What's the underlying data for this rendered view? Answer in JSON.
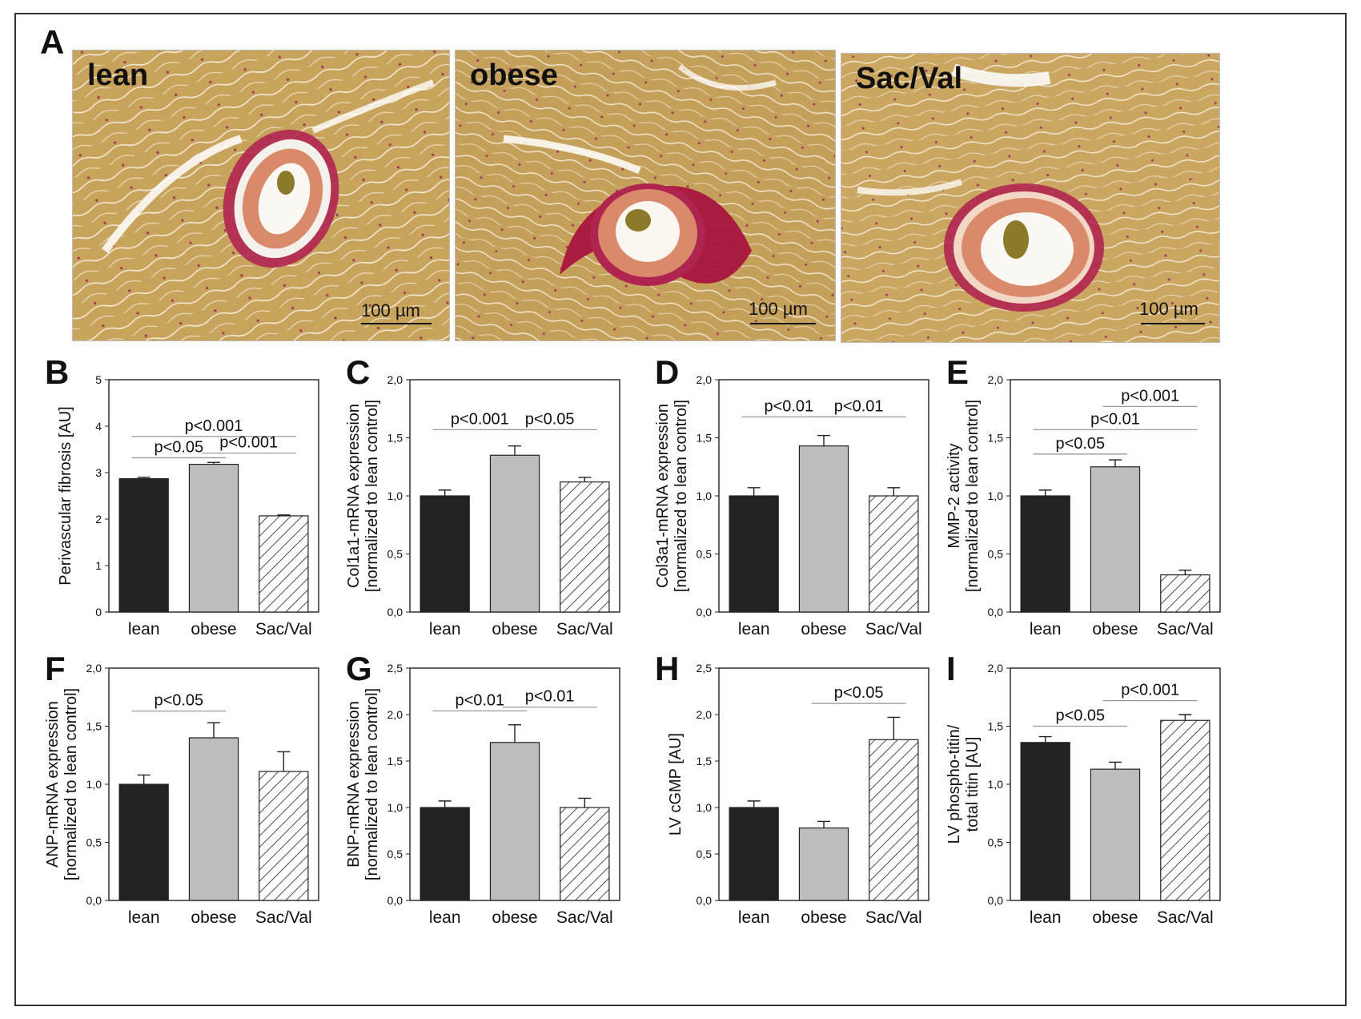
{
  "panel_A": {
    "letter": "A",
    "images": [
      {
        "label": "lean",
        "scale": "100 µm"
      },
      {
        "label": "obese",
        "scale": "100 µm"
      },
      {
        "label": "Sac/Val",
        "scale": "100 µm"
      }
    ]
  },
  "colors": {
    "lean_bar": "#222222",
    "obese_bar": "#bdbdbd",
    "sacval_bar": "hatched",
    "tissue": "#c9a45a",
    "collagen": "#b0204a"
  },
  "chart_data": [
    {
      "panel": "B",
      "type": "bar",
      "ylabel_lines": [
        "Perivascular fibrosis [AU]"
      ],
      "categories": [
        "lean",
        "obese",
        "Sac/Val"
      ],
      "values": [
        2.87,
        3.18,
        2.07
      ],
      "errors": [
        0.03,
        0.04,
        0.02
      ],
      "ylim": [
        0,
        5
      ],
      "yticks": [
        "0",
        "1",
        "2",
        "3",
        "4",
        "5"
      ],
      "yticks_values": [
        0,
        1,
        2,
        3,
        4,
        5
      ],
      "significance": [
        {
          "from": 0,
          "to": 2,
          "y": 3.78,
          "label": "p<0.001"
        },
        {
          "from": 0,
          "to": 1,
          "y": 3.32,
          "label": "p<0.05"
        },
        {
          "from": 1,
          "to": 2,
          "y": 3.42,
          "label": "p<0.001"
        }
      ]
    },
    {
      "panel": "C",
      "type": "bar",
      "ylabel_lines": [
        "Col1a1-mRNA expression",
        "[normalized to lean control]"
      ],
      "categories": [
        "lean",
        "obese",
        "Sac/Val"
      ],
      "values": [
        1.0,
        1.35,
        1.12
      ],
      "errors": [
        0.05,
        0.08,
        0.04
      ],
      "ylim": [
        0,
        2.0
      ],
      "yticks": [
        "0,0",
        "0,5",
        "1,0",
        "1,5",
        "2,0"
      ],
      "yticks_values": [
        0,
        0.5,
        1.0,
        1.5,
        2.0
      ],
      "significance": [
        {
          "from": 0,
          "to": 1,
          "y": 1.57,
          "label": "p<0.001"
        },
        {
          "from": 1,
          "to": 2,
          "y": 1.57,
          "label": "p<0.05"
        }
      ]
    },
    {
      "panel": "D",
      "type": "bar",
      "ylabel_lines": [
        "Col3a1-mRNA expression",
        "[normalized to lean control]"
      ],
      "categories": [
        "lean",
        "obese",
        "Sac/Val"
      ],
      "values": [
        1.0,
        1.43,
        1.0
      ],
      "errors": [
        0.07,
        0.09,
        0.07
      ],
      "ylim": [
        0,
        2.0
      ],
      "yticks": [
        "0,0",
        "0,5",
        "1,0",
        "1,5",
        "2,0"
      ],
      "yticks_values": [
        0,
        0.5,
        1.0,
        1.5,
        2.0
      ],
      "significance": [
        {
          "from": 0,
          "to": 1,
          "y": 1.68,
          "label": "p<0.01"
        },
        {
          "from": 1,
          "to": 2,
          "y": 1.68,
          "label": "p<0.01"
        }
      ]
    },
    {
      "panel": "E",
      "type": "bar",
      "ylabel_lines": [
        "MMP-2 activity",
        "[normalized to lean control]"
      ],
      "categories": [
        "lean",
        "obese",
        "Sac/Val"
      ],
      "values": [
        1.0,
        1.25,
        0.32
      ],
      "errors": [
        0.05,
        0.06,
        0.04
      ],
      "ylim": [
        0,
        2.0
      ],
      "yticks": [
        "0,0",
        "0,5",
        "1,0",
        "1,5",
        "2,0"
      ],
      "yticks_values": [
        0,
        0.5,
        1.0,
        1.5,
        2.0
      ],
      "significance": [
        {
          "from": 1,
          "to": 2,
          "y": 1.77,
          "label": "p<0.001"
        },
        {
          "from": 0,
          "to": 2,
          "y": 1.57,
          "label": "p<0.01"
        },
        {
          "from": 0,
          "to": 1,
          "y": 1.36,
          "label": "p<0.05"
        }
      ]
    },
    {
      "panel": "F",
      "type": "bar",
      "ylabel_lines": [
        "ANP-mRNA expression",
        "[normalized to lean control]"
      ],
      "categories": [
        "lean",
        "obese",
        "Sac/Val"
      ],
      "values": [
        1.0,
        1.4,
        1.11
      ],
      "errors": [
        0.08,
        0.13,
        0.17
      ],
      "ylim": [
        0,
        2.0
      ],
      "yticks": [
        "0,0",
        "0,5",
        "1,0",
        "1,5",
        "2,0"
      ],
      "yticks_values": [
        0,
        0.5,
        1.0,
        1.5,
        2.0
      ],
      "significance": [
        {
          "from": 0,
          "to": 1,
          "y": 1.63,
          "label": "p<0.05"
        }
      ]
    },
    {
      "panel": "G",
      "type": "bar",
      "ylabel_lines": [
        "BNP-mRNA expression",
        "[normalized to lean control]"
      ],
      "categories": [
        "lean",
        "obese",
        "Sac/Val"
      ],
      "values": [
        1.0,
        1.7,
        1.0
      ],
      "errors": [
        0.07,
        0.19,
        0.1
      ],
      "ylim": [
        0,
        2.5
      ],
      "yticks": [
        "0,0",
        "0,5",
        "1,0",
        "1,5",
        "2,0",
        "2,5"
      ],
      "yticks_values": [
        0,
        0.5,
        1.0,
        1.5,
        2.0,
        2.5
      ],
      "significance": [
        {
          "from": 0,
          "to": 1,
          "y": 2.04,
          "label": "p<0.01"
        },
        {
          "from": 1,
          "to": 2,
          "y": 2.08,
          "label": "p<0.01"
        }
      ]
    },
    {
      "panel": "H",
      "type": "bar",
      "ylabel_lines": [
        "LV cGMP [AU]"
      ],
      "categories": [
        "lean",
        "obese",
        "Sac/Val"
      ],
      "values": [
        1.0,
        0.78,
        1.73
      ],
      "errors": [
        0.07,
        0.07,
        0.24
      ],
      "ylim": [
        0,
        2.5
      ],
      "yticks": [
        "0,0",
        "0,5",
        "1,0",
        "1,5",
        "2,0",
        "2,5"
      ],
      "yticks_values": [
        0,
        0.5,
        1.0,
        1.5,
        2.0,
        2.5
      ],
      "significance": [
        {
          "from": 1,
          "to": 2,
          "y": 2.12,
          "label": "p<0.05"
        }
      ]
    },
    {
      "panel": "I",
      "type": "bar",
      "ylabel_lines": [
        "LV phospho-titin/",
        "total titin [AU]"
      ],
      "categories": [
        "lean",
        "obese",
        "Sac/Val"
      ],
      "values": [
        1.36,
        1.13,
        1.55
      ],
      "errors": [
        0.05,
        0.06,
        0.05
      ],
      "ylim": [
        0,
        2.0
      ],
      "yticks": [
        "0,0",
        "0,5",
        "1,0",
        "1,5",
        "2,0"
      ],
      "yticks_values": [
        0,
        0.5,
        1.0,
        1.5,
        2.0
      ],
      "significance": [
        {
          "from": 1,
          "to": 2,
          "y": 1.72,
          "label": "p<0.001"
        },
        {
          "from": 0,
          "to": 1,
          "y": 1.5,
          "label": "p<0.05"
        }
      ]
    }
  ]
}
